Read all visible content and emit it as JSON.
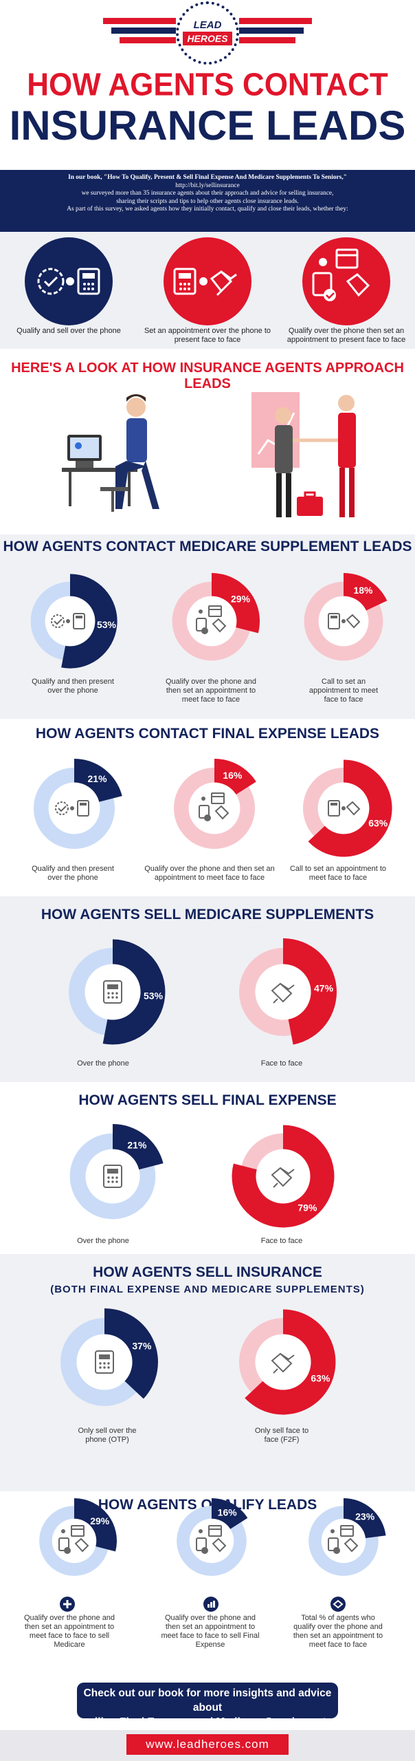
{
  "header": {
    "logo_top": "LEAD",
    "logo_bottom": "HEROES",
    "title_line1": "HOW AGENTS CONTACT",
    "title_line2": "INSURANCE LEADS"
  },
  "intro": {
    "line1": "In our book, \"How To Qualify, Present & Sell Final Expense And Medicare Supplements To Seniors,\"",
    "line2": "http://bit.ly/sellinsurance",
    "line3": "we surveyed more than 35 insurance agents about their approach and advice for selling insurance,",
    "line4": "sharing their scripts and tips to help other agents close insurance leads.",
    "line5": "As part of this survey, we asked agents how they initially contact, qualify and close their leads, whether they:"
  },
  "methods": [
    {
      "label": "Qualify and sell over the phone",
      "color": "#13235b",
      "icon": "check-phone-icon"
    },
    {
      "label": "Set an appointment over the phone to present face to face",
      "color": "#e0162b",
      "icon": "phone-handshake-icon"
    },
    {
      "label": "Qualify over the phone then set an appointment to present face to face",
      "color": "#e0162b",
      "icon": "calendar-handshake-icon"
    }
  ],
  "approach_title": "HERE'S A LOOK AT HOW INSURANCE AGENTS APPROACH LEADS",
  "colors": {
    "navy": "#13235b",
    "red": "#e0162b",
    "light_blue": "#c9dbf7",
    "light_pink": "#f7c6cc"
  },
  "chart_data": [
    {
      "type": "pie",
      "title": "HOW AGENTS CONTACT MEDICARE SUPPLEMENT LEADS",
      "slices": [
        {
          "label": "Qualify and then present over the phone",
          "value": 53
        },
        {
          "label": "Qualify over the phone and then set an appointment to meet face to face",
          "value": 29
        },
        {
          "label": "Call to set an appointment to meet face to face",
          "value": 18
        }
      ]
    },
    {
      "type": "pie",
      "title": "HOW AGENTS CONTACT FINAL EXPENSE LEADS",
      "slices": [
        {
          "label": "Qualify and then present over the phone",
          "value": 21
        },
        {
          "label": "Qualify over the phone and then set an appointment to meet face to face",
          "value": 16
        },
        {
          "label": "Call to set an appointment to meet face to face",
          "value": 63
        }
      ]
    },
    {
      "type": "pie",
      "title": "HOW AGENTS SELL MEDICARE SUPPLEMENTS",
      "slices": [
        {
          "label": "Over the phone",
          "value": 53
        },
        {
          "label": "Face to face",
          "value": 47
        }
      ]
    },
    {
      "type": "pie",
      "title": "HOW AGENTS SELL FINAL EXPENSE",
      "slices": [
        {
          "label": "Over the phone",
          "value": 21
        },
        {
          "label": "Face to face",
          "value": 79
        }
      ]
    },
    {
      "type": "pie",
      "title": "HOW AGENTS SELL INSURANCE",
      "subtitle": "(BOTH FINAL EXPENSE AND MEDICARE SUPPLEMENTS)",
      "slices": [
        {
          "label": "Only sell over the phone (OTP)",
          "value": 37
        },
        {
          "label": "Only sell face to face (F2F)",
          "value": 63
        }
      ]
    },
    {
      "type": "pie",
      "title": "HOW AGENTS QUALIFY LEADS",
      "slices": [
        {
          "label": "Qualify over the phone and then set an appointment to meet face to face to sell Medicare",
          "value": 29
        },
        {
          "label": "Qualify over the phone and then set an appointment to meet face to face to sell Final Expense",
          "value": 16
        },
        {
          "label": "Total % of agents who qualify over the phone and then set an appointment to meet face to face",
          "value": 23
        }
      ]
    }
  ],
  "cta": {
    "line1": "Check out our book for more insights and advice about",
    "line2": "selling Final Expense and Medicare Supplements"
  },
  "footer": {
    "url": "www.leadheroes.com"
  }
}
